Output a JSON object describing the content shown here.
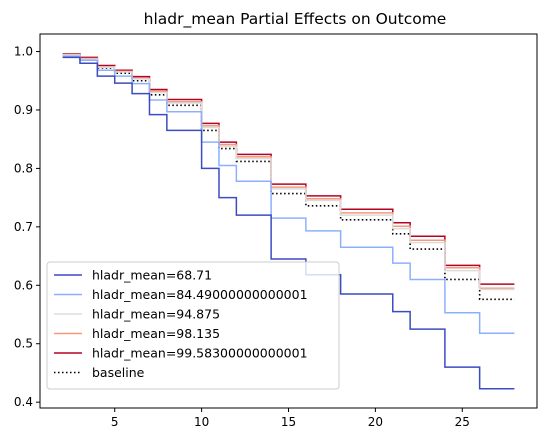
{
  "chart_data": {
    "type": "line",
    "title": "hladr_mean Partial Effects on Outcome",
    "xlabel": "",
    "ylabel": "",
    "xlim": [
      0.7,
      29.3
    ],
    "ylim": [
      0.39,
      1.03
    ],
    "xticks": [
      5,
      10,
      15,
      20,
      25
    ],
    "yticks": [
      0.4,
      0.5,
      0.6,
      0.7,
      0.8,
      0.9,
      1.0
    ],
    "ytick_labels": [
      "0.4",
      "0.5",
      "0.6",
      "0.7",
      "0.8",
      "0.9",
      "1.0"
    ],
    "legend_position": "lower-left",
    "grid": false,
    "x": [
      2,
      3,
      4,
      5,
      6,
      7,
      8,
      10,
      11,
      12,
      14,
      16,
      18,
      21,
      22,
      24,
      26,
      28
    ],
    "series": [
      {
        "name": "hladr_mean=68.71",
        "color": "#3b4cc0",
        "style": "solid",
        "values": [
          0.99,
          0.98,
          0.958,
          0.946,
          0.928,
          0.892,
          0.865,
          0.8,
          0.75,
          0.72,
          0.645,
          0.618,
          0.585,
          0.555,
          0.525,
          0.46,
          0.423,
          0.423
        ]
      },
      {
        "name": "hladr_mean=84.49000000000001",
        "color": "#8db0fe",
        "style": "solid",
        "values": [
          0.992,
          0.985,
          0.968,
          0.958,
          0.945,
          0.917,
          0.897,
          0.845,
          0.805,
          0.778,
          0.715,
          0.693,
          0.665,
          0.638,
          0.61,
          0.553,
          0.518,
          0.518
        ]
      },
      {
        "name": "hladr_mean=94.875",
        "color": "#dddcdc",
        "style": "solid",
        "values": [
          0.994,
          0.987,
          0.973,
          0.965,
          0.953,
          0.93,
          0.912,
          0.87,
          0.838,
          0.817,
          0.765,
          0.745,
          0.72,
          0.697,
          0.673,
          0.625,
          0.593,
          0.593
        ]
      },
      {
        "name": "hladr_mean=98.135",
        "color": "#f49a7b",
        "style": "solid",
        "values": [
          0.995,
          0.988,
          0.974,
          0.966,
          0.954,
          0.932,
          0.914,
          0.873,
          0.841,
          0.82,
          0.768,
          0.748,
          0.724,
          0.701,
          0.677,
          0.63,
          0.595,
          0.595
        ]
      },
      {
        "name": "hladr_mean=99.58300000000001",
        "color": "#b40426",
        "style": "solid",
        "values": [
          0.996,
          0.99,
          0.976,
          0.968,
          0.957,
          0.935,
          0.918,
          0.877,
          0.845,
          0.824,
          0.773,
          0.753,
          0.73,
          0.707,
          0.684,
          0.634,
          0.602,
          0.602
        ]
      },
      {
        "name": "baseline",
        "color": "#000000",
        "style": "dotted",
        "values": [
          0.994,
          0.987,
          0.972,
          0.963,
          0.95,
          0.926,
          0.908,
          0.865,
          0.834,
          0.812,
          0.757,
          0.736,
          0.712,
          0.688,
          0.662,
          0.61,
          0.576,
          0.576
        ]
      }
    ]
  }
}
